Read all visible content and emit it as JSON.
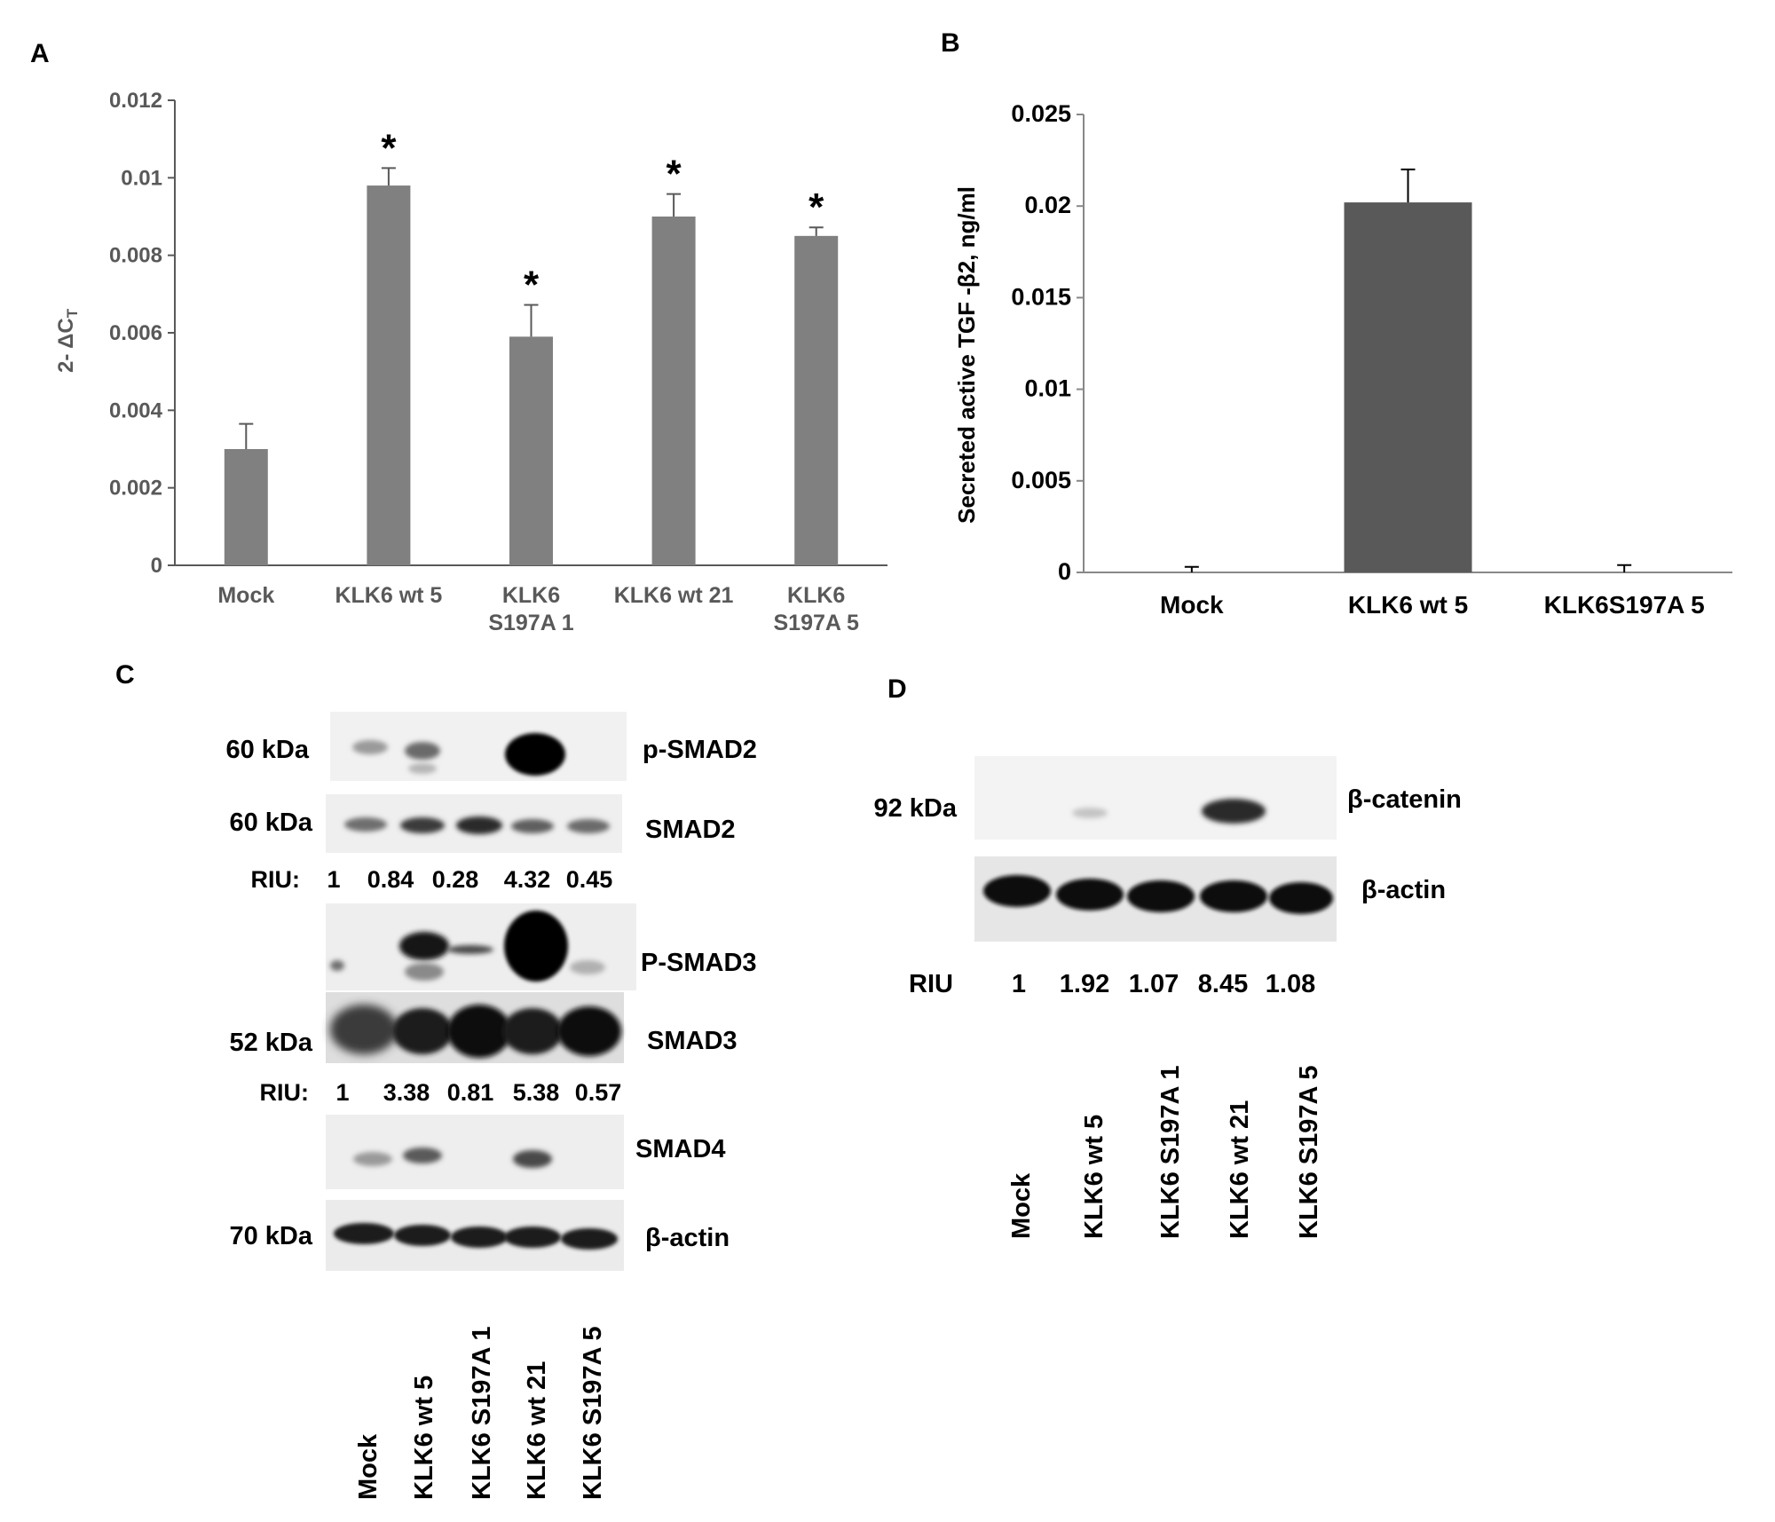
{
  "panels": {
    "A": {
      "label": "A",
      "ylabel_main": "2- ΔC",
      "ylabel_sub": "T",
      "significance_marker": "*"
    },
    "B": {
      "label": "B",
      "ylabel": "Secreted  active TGF -β2, ng/ml"
    },
    "C": {
      "label": "C",
      "blots": [
        {
          "name": "p-SMAD2",
          "kda": "60 kDa"
        },
        {
          "name": "SMAD2",
          "kda": "60 kDa"
        },
        {
          "name": "P-SMAD3",
          "kda": ""
        },
        {
          "name": "SMAD3",
          "kda": "52 kDa"
        },
        {
          "name": "SMAD4",
          "kda": ""
        },
        {
          "name": "β-actin",
          "kda": "70 kDa"
        }
      ],
      "riu_rows": [
        {
          "label": "RIU:",
          "values": [
            "1",
            "0.84",
            "0.28",
            "4.32",
            "0.45"
          ]
        },
        {
          "label": "RIU:",
          "values": [
            "1",
            "3.38",
            "0.81",
            "5.38",
            "0.57"
          ]
        }
      ],
      "lanes": [
        "Mock",
        "KLK6 wt 5",
        "KLK6 S197A 1",
        "KLK6 wt 21",
        "KLK6 S197A 5"
      ]
    },
    "D": {
      "label": "D",
      "blots": [
        {
          "name": "β-catenin",
          "kda": "92 kDa"
        },
        {
          "name": "β-actin",
          "kda": ""
        }
      ],
      "riu_row": {
        "label": "RIU",
        "values": [
          "1",
          "1.92",
          "1.07",
          "8.45",
          "1.08"
        ]
      },
      "lanes": [
        "Mock",
        "KLK6 wt 5",
        "KLK6 S197A 1",
        "KLK6 wt 21",
        "KLK6 S197A 5"
      ]
    }
  },
  "chart_data": [
    {
      "panel": "A",
      "type": "bar",
      "categories": [
        [
          "Mock"
        ],
        [
          "KLK6 wt 5"
        ],
        [
          "KLK6",
          "S197A 1"
        ],
        [
          "KLK6 wt 21"
        ],
        [
          "KLK6",
          "S197A 5"
        ]
      ],
      "values": [
        0.003,
        0.0098,
        0.0059,
        0.009,
        0.0085
      ],
      "errors": [
        0.00065,
        0.00045,
        0.00082,
        0.00058,
        0.00022
      ],
      "significant": [
        false,
        true,
        true,
        true,
        true
      ],
      "ylim": [
        0,
        0.012
      ],
      "yticks": [
        "0",
        "0.002",
        "0.004",
        "0.006",
        "0.008",
        "0.01",
        "0.012"
      ],
      "ytick_values": [
        0,
        0.002,
        0.004,
        0.006,
        0.008,
        0.01,
        0.012
      ],
      "bar_color": "#808080",
      "text_color": "#595959",
      "grid": false
    },
    {
      "panel": "B",
      "type": "bar",
      "categories": [
        "Mock",
        "KLK6 wt 5",
        "KLK6S197A 5"
      ],
      "values": [
        0,
        0.0202,
        0
      ],
      "errors": [
        0.0003,
        0.0018,
        0.0004
      ],
      "ylim": [
        0,
        0.025
      ],
      "yticks": [
        "0",
        "0.005",
        "0.01",
        "0.015",
        "0.02",
        "0.025"
      ],
      "ytick_values": [
        0,
        0.005,
        0.01,
        0.015,
        0.02,
        0.025
      ],
      "bar_color": "#595959",
      "text_color": "#000000",
      "grid": false
    }
  ]
}
